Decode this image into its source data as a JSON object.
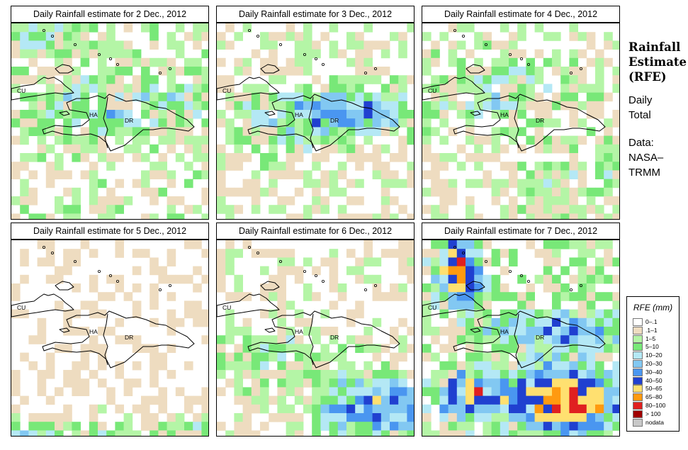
{
  "panels": [
    {
      "title": "Daily Rainfall estimate for  2 Dec., 2012",
      "seed": 11,
      "pattern": "light-north"
    },
    {
      "title": "Daily Rainfall estimate for  3 Dec., 2012",
      "seed": 23,
      "pattern": "band"
    },
    {
      "title": "Daily Rainfall estimate for  4 Dec., 2012",
      "seed": 37,
      "pattern": "light"
    },
    {
      "title": "Daily Rainfall estimate for  5 Dec., 2012",
      "seed": 41,
      "pattern": "dry"
    },
    {
      "title": "Daily Rainfall estimate for  6 Dec., 2012",
      "seed": 53,
      "pattern": "southeast"
    },
    {
      "title": "Daily Rainfall estimate for  7 Dec., 2012",
      "seed": 67,
      "pattern": "heavy"
    }
  ],
  "map_labels": {
    "cuba": "CU",
    "haiti": "HA",
    "dominican_republic": "DR"
  },
  "sidebar": {
    "title_lines": [
      "Rainfall",
      "Estimate",
      "(RFE)"
    ],
    "subtitle_lines": [
      "Daily",
      "Total"
    ],
    "source_lines": [
      "Data:",
      "NASA–",
      "TRMM"
    ]
  },
  "legend": {
    "title": "RFE (mm)",
    "items": [
      {
        "label": "0–.1",
        "color": "#ffffff"
      },
      {
        "label": ".1–1",
        "color": "#eedcc0"
      },
      {
        "label": "1–5",
        "color": "#b4f5a6"
      },
      {
        "label": "5–10",
        "color": "#78e878"
      },
      {
        "label": "10–20",
        "color": "#b4e8f5"
      },
      {
        "label": "20–30",
        "color": "#82c8f2"
      },
      {
        "label": "30–40",
        "color": "#4a96f0"
      },
      {
        "label": "40–50",
        "color": "#2040d0"
      },
      {
        "label": "50–65",
        "color": "#ffe070"
      },
      {
        "label": "65–80",
        "color": "#ff9a10"
      },
      {
        "label": "80–100",
        "color": "#e02020"
      },
      {
        "label": "> 100",
        "color": "#a00000"
      },
      {
        "label": "nodata",
        "color": "#c8c8c8"
      }
    ]
  }
}
